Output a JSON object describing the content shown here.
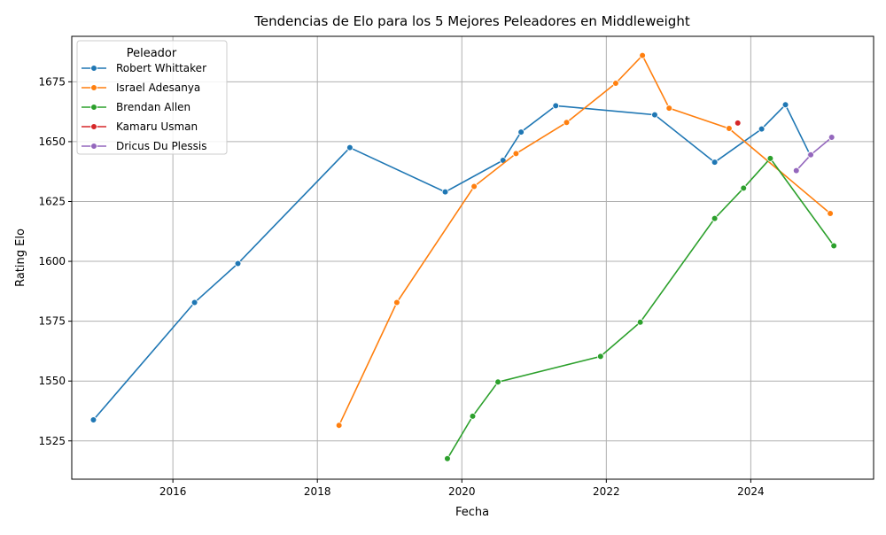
{
  "chart_data": {
    "type": "line",
    "title": "Tendencias de Elo para los 5 Mejores Peleadores en Middleweight",
    "xlabel": "Fecha",
    "ylabel": "Rating Elo",
    "xlim": [
      2014.6,
      2025.7
    ],
    "ylim": [
      1509,
      1694
    ],
    "x_ticks": [
      2016,
      2018,
      2020,
      2022,
      2024
    ],
    "y_ticks": [
      1525,
      1550,
      1575,
      1600,
      1625,
      1650,
      1675
    ],
    "grid": true,
    "legend": {
      "title": "Peleador",
      "position": "upper-left"
    },
    "series": [
      {
        "name": "Robert Whittaker",
        "color": "#1f77b4",
        "x": [
          2014.9,
          2016.3,
          2016.9,
          2018.45,
          2019.77,
          2020.57,
          2020.82,
          2021.3,
          2022.67,
          2023.5,
          2024.15,
          2024.48,
          2024.82
        ],
        "y": [
          1533.8,
          1582.8,
          1599.1,
          1647.5,
          1629,
          1642.2,
          1654,
          1665,
          1661.2,
          1641.4,
          1655.3,
          1665.4,
          1644.5
        ]
      },
      {
        "name": "Israel Adesanya",
        "color": "#ff7f0e",
        "x": [
          2018.3,
          2019.1,
          2020.17,
          2020.75,
          2021.45,
          2022.13,
          2022.5,
          2022.87,
          2023.7,
          2025.1
        ],
        "y": [
          1531.5,
          1582.8,
          1631.3,
          1645,
          1658,
          1674.4,
          1686,
          1664,
          1655.5,
          1620
        ]
      },
      {
        "name": "Brendan Allen",
        "color": "#2ca02c",
        "x": [
          2019.8,
          2020.15,
          2020.5,
          2021.92,
          2022.47,
          2023.5,
          2023.9,
          2024.27,
          2025.15
        ],
        "y": [
          1517.6,
          1535.3,
          1549.6,
          1560.3,
          1574.6,
          1617.9,
          1630.6,
          1643,
          1606.5
        ]
      },
      {
        "name": "Kamaru Usman",
        "color": "#d62728",
        "x": [
          2023.82
        ],
        "y": [
          1657.8
        ]
      },
      {
        "name": "Dricus Du Plessis",
        "color": "#9467bd",
        "x": [
          2024.63,
          2024.83,
          2025.12
        ],
        "y": [
          1637.9,
          1644.5,
          1651.8
        ]
      }
    ]
  }
}
